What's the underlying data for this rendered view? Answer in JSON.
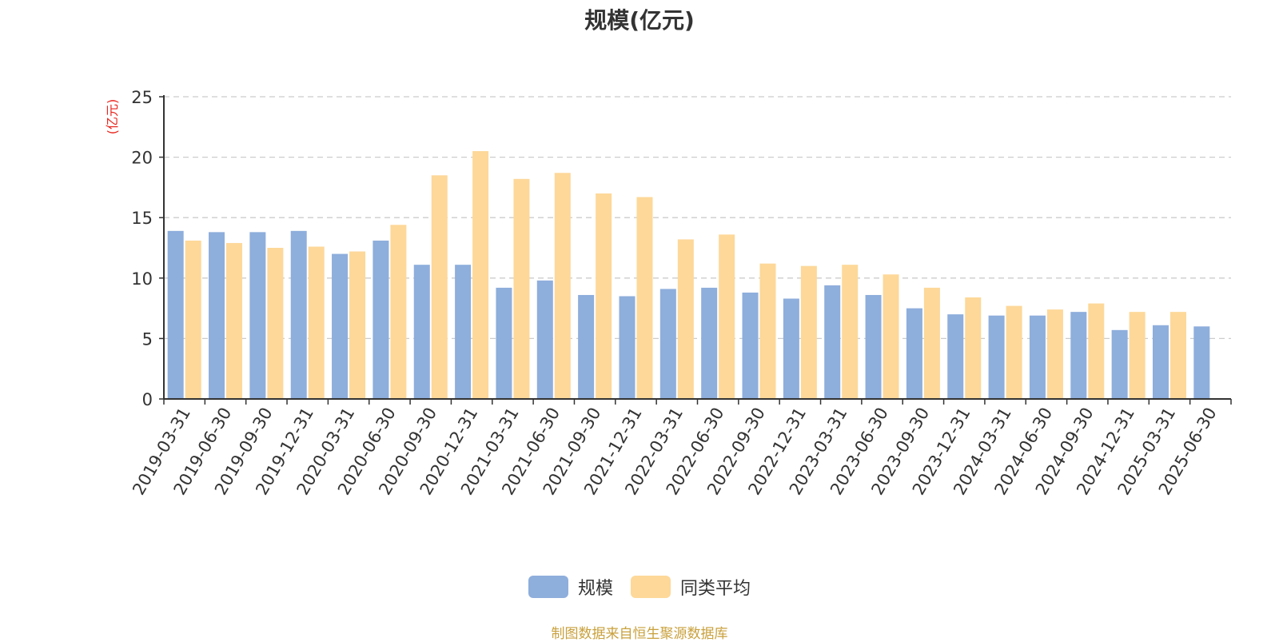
{
  "chart_data": {
    "type": "bar",
    "title": "规模(亿元)",
    "ylabel": "(亿元)",
    "xlabel": "",
    "ylim": [
      0,
      25
    ],
    "yticks": [
      0,
      5,
      10,
      15,
      20,
      25
    ],
    "grid": true,
    "legend_position": "bottom-center",
    "categories": [
      "2019-03-31",
      "2019-06-30",
      "2019-09-30",
      "2019-12-31",
      "2020-03-31",
      "2020-06-30",
      "2020-09-30",
      "2020-12-31",
      "2021-03-31",
      "2021-06-30",
      "2021-09-30",
      "2021-12-31",
      "2022-03-31",
      "2022-06-30",
      "2022-09-30",
      "2022-12-31",
      "2023-03-31",
      "2023-06-30",
      "2023-09-30",
      "2023-12-31",
      "2024-03-31",
      "2024-06-30",
      "2024-09-30",
      "2024-12-31",
      "2025-03-31",
      "2025-06-30"
    ],
    "series": [
      {
        "name": "规模",
        "color": "#8eaedc",
        "values": [
          13.9,
          13.8,
          13.8,
          13.9,
          12.0,
          13.1,
          11.1,
          11.1,
          9.2,
          9.8,
          8.6,
          8.5,
          9.1,
          9.2,
          8.8,
          8.3,
          9.4,
          8.6,
          7.5,
          7.0,
          6.9,
          6.9,
          7.2,
          5.7,
          6.1,
          6.0
        ]
      },
      {
        "name": "同类平均",
        "color": "#fdd899",
        "values": [
          13.1,
          12.9,
          12.5,
          12.6,
          12.2,
          14.4,
          18.5,
          20.5,
          18.2,
          18.7,
          17.0,
          16.7,
          13.2,
          13.6,
          11.2,
          11.0,
          11.1,
          10.3,
          9.2,
          8.4,
          7.7,
          7.4,
          7.9,
          7.2,
          7.2,
          null
        ]
      }
    ]
  },
  "source_note": "制图数据来自恒生聚源数据库",
  "colors": {
    "axis": "#333333",
    "grid": "#cccccc",
    "ylabel": "#e8261e",
    "source": "#c9a13d"
  }
}
